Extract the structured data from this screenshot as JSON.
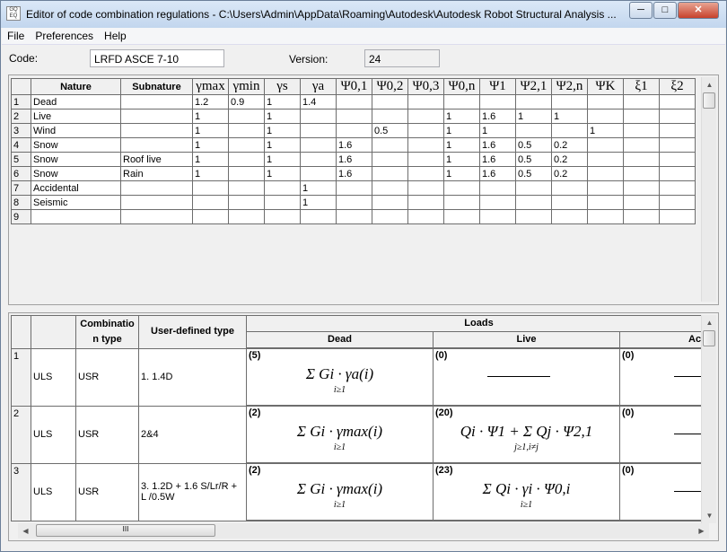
{
  "window": {
    "title": "Editor of code combination regulations - C:\\Users\\Admin\\AppData\\Roaming\\Autodesk\\Autodesk Robot Structural Analysis ...",
    "minimize": "─",
    "maximize": "□",
    "close": "✕"
  },
  "menu": [
    "File",
    "Preferences",
    "Help"
  ],
  "code": {
    "label": "Code:",
    "value": "LRFD ASCE 7-10"
  },
  "version": {
    "label": "Version:",
    "value": "24"
  },
  "natures": {
    "headers": [
      "",
      "Nature",
      "Subnature",
      "γmax",
      "γmin",
      "γs",
      "γa",
      "Ψ0,1",
      "Ψ0,2",
      "Ψ0,3",
      "Ψ0,n",
      "Ψ1",
      "Ψ2,1",
      "Ψ2,n",
      "ΨK",
      "ξ1",
      "ξ2"
    ],
    "rows": [
      [
        "1",
        "Dead",
        "",
        "1.2",
        "0.9",
        "1",
        "1.4",
        "",
        "",
        "",
        "",
        "",
        "",
        "",
        "",
        "",
        ""
      ],
      [
        "2",
        "Live",
        "",
        "1",
        "",
        "1",
        "",
        "",
        "",
        "",
        "1",
        "1.6",
        "1",
        "1",
        "",
        "",
        ""
      ],
      [
        "3",
        "Wind",
        "",
        "1",
        "",
        "1",
        "",
        "",
        "0.5",
        "",
        "1",
        "1",
        "",
        "",
        "1",
        "",
        ""
      ],
      [
        "4",
        "Snow",
        "",
        "1",
        "",
        "1",
        "",
        "1.6",
        "",
        "",
        "1",
        "1.6",
        "0.5",
        "0.2",
        "",
        "",
        ""
      ],
      [
        "5",
        "Snow",
        "Roof live",
        "1",
        "",
        "1",
        "",
        "1.6",
        "",
        "",
        "1",
        "1.6",
        "0.5",
        "0.2",
        "",
        "",
        ""
      ],
      [
        "6",
        "Snow",
        "Rain",
        "1",
        "",
        "1",
        "",
        "1.6",
        "",
        "",
        "1",
        "1.6",
        "0.5",
        "0.2",
        "",
        "",
        ""
      ],
      [
        "7",
        "Accidental",
        "",
        "",
        "",
        "",
        "1",
        "",
        "",
        "",
        "",
        "",
        "",
        "",
        "",
        "",
        ""
      ],
      [
        "8",
        "Seismic",
        "",
        "",
        "",
        "",
        "1",
        "",
        "",
        "",
        "",
        "",
        "",
        "",
        "",
        "",
        ""
      ],
      [
        "9",
        "",
        "",
        "",
        "",
        "",
        "",
        "",
        "",
        "",
        "",
        "",
        "",
        "",
        "",
        "",
        ""
      ]
    ]
  },
  "combinations": {
    "headers": {
      "combination_type": "Combinatio n type",
      "user_defined": "User-defined type",
      "loads": "Loads",
      "dead": "Dead",
      "live": "Live",
      "acc": "Ac"
    },
    "rows": [
      {
        "n": "1",
        "limit": "ULS",
        "type": "USR",
        "user": "1. 1.4D",
        "dead_count": "(5)",
        "dead_formula": "Σ Gi · γa(i)",
        "dead_sub": "i≥1",
        "live_count": "(0)",
        "live_formula": "",
        "live_sub": "",
        "acc_count": "(0)"
      },
      {
        "n": "2",
        "limit": "ULS",
        "type": "USR",
        "user": "2&4",
        "dead_count": "(2)",
        "dead_formula": "Σ Gi · γmax(i)",
        "dead_sub": "i≥1",
        "live_count": "(20)",
        "live_formula": "Qi · Ψ1 + Σ Qj · Ψ2,1",
        "live_sub": "j≥1,i≠j",
        "acc_count": "(0)"
      },
      {
        "n": "3",
        "limit": "ULS",
        "type": "USR",
        "user": "3. 1.2D + 1.6 S/Lr/R + L /0.5W",
        "dead_count": "(2)",
        "dead_formula": "Σ Gi · γmax(i)",
        "dead_sub": "i≥1",
        "live_count": "(23)",
        "live_formula": "Σ Qi · γi · Ψ0,i",
        "live_sub": "i≥1",
        "acc_count": "(0)"
      }
    ]
  }
}
